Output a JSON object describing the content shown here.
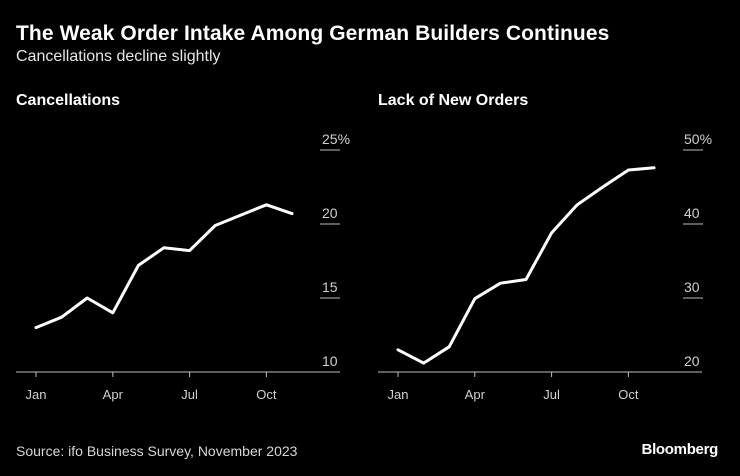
{
  "header": {
    "title": "The Weak Order Intake Among German Builders Continues",
    "subtitle": "Cancellations decline slightly"
  },
  "footer": {
    "source": "Source: ifo Business Survey, November 2023",
    "brand": "Bloomberg"
  },
  "chart_data": [
    {
      "type": "line",
      "title": "Cancellations",
      "x": [
        "Jan 2023",
        "Feb 2023",
        "Mar 2023",
        "Apr 2023",
        "May 2023",
        "Jun 2023",
        "Jul 2023",
        "Aug 2023",
        "Sep 2023",
        "Oct 2023",
        "Nov 2023"
      ],
      "x_tick_labels": [
        "Jan",
        "Apr",
        "Jul",
        "Oct"
      ],
      "x_tick_indices": [
        0,
        3,
        6,
        9
      ],
      "series": [
        {
          "values": [
            13.0,
            13.7,
            15.0,
            14.0,
            17.2,
            18.4,
            18.2,
            19.9,
            20.6,
            21.3,
            20.7
          ]
        }
      ],
      "y_ticks": [
        10,
        15,
        20,
        25
      ],
      "y_tick_labels": [
        "10",
        "15",
        "20",
        "25%"
      ],
      "ylim": [
        10,
        25
      ],
      "grid": false,
      "line_color": "#ffffff"
    },
    {
      "type": "line",
      "title": "Lack of New Orders",
      "x": [
        "Jan 2023",
        "Feb 2023",
        "Mar 2023",
        "Apr 2023",
        "May 2023",
        "Jun 2023",
        "Jul 2023",
        "Aug 2023",
        "Sep 2023",
        "Oct 2023",
        "Nov 2023"
      ],
      "x_tick_labels": [
        "Jan",
        "Apr",
        "Jul",
        "Oct"
      ],
      "x_tick_indices": [
        0,
        3,
        6,
        9
      ],
      "series": [
        {
          "values": [
            23.0,
            21.2,
            23.4,
            29.9,
            32.0,
            32.5,
            38.8,
            42.6,
            45.0,
            47.3,
            47.6
          ]
        }
      ],
      "y_ticks": [
        20,
        30,
        40,
        50
      ],
      "y_tick_labels": [
        "20",
        "30",
        "40",
        "50%"
      ],
      "ylim": [
        20,
        50
      ],
      "grid": false,
      "line_color": "#ffffff"
    }
  ]
}
